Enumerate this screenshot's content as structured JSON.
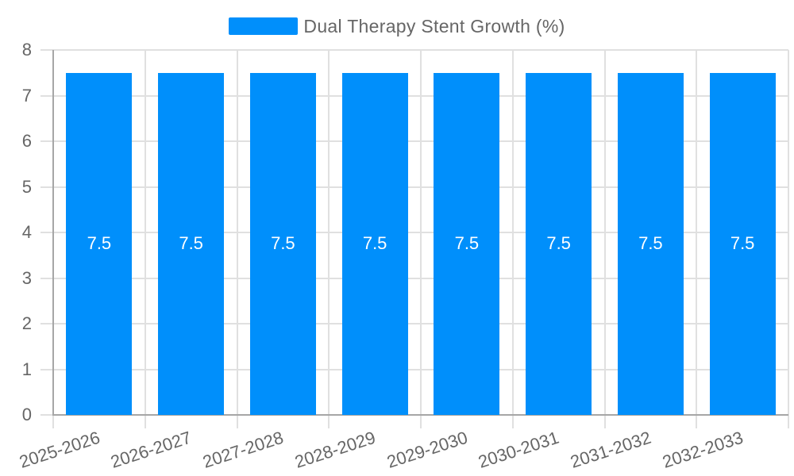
{
  "chart_data": {
    "type": "bar",
    "title": "Dual Therapy Stent Growth (%)",
    "categories": [
      "2025-2026",
      "2026-2027",
      "2027-2028",
      "2028-2029",
      "2029-2030",
      "2030-2031",
      "2031-2032",
      "2032-2033"
    ],
    "series": [
      {
        "name": "Dual Therapy Stent Growth (%)",
        "values": [
          7.5,
          7.5,
          7.5,
          7.5,
          7.5,
          7.5,
          7.5,
          7.5
        ]
      }
    ],
    "bar_value_labels": [
      "7.5",
      "7.5",
      "7.5",
      "7.5",
      "7.5",
      "7.5",
      "7.5",
      "7.5"
    ],
    "xlabel": "",
    "ylabel": "",
    "ylim": [
      0,
      8
    ],
    "yticks": [
      0,
      1,
      2,
      3,
      4,
      5,
      6,
      7,
      8
    ],
    "legend_position": "top",
    "grid": true,
    "colors": {
      "bar": "#008FFB",
      "grid": "#e0e0e0",
      "axis": "#a6a6a6",
      "text": "#666666",
      "bar_label": "#ffffff",
      "background": "#ffffff"
    }
  }
}
